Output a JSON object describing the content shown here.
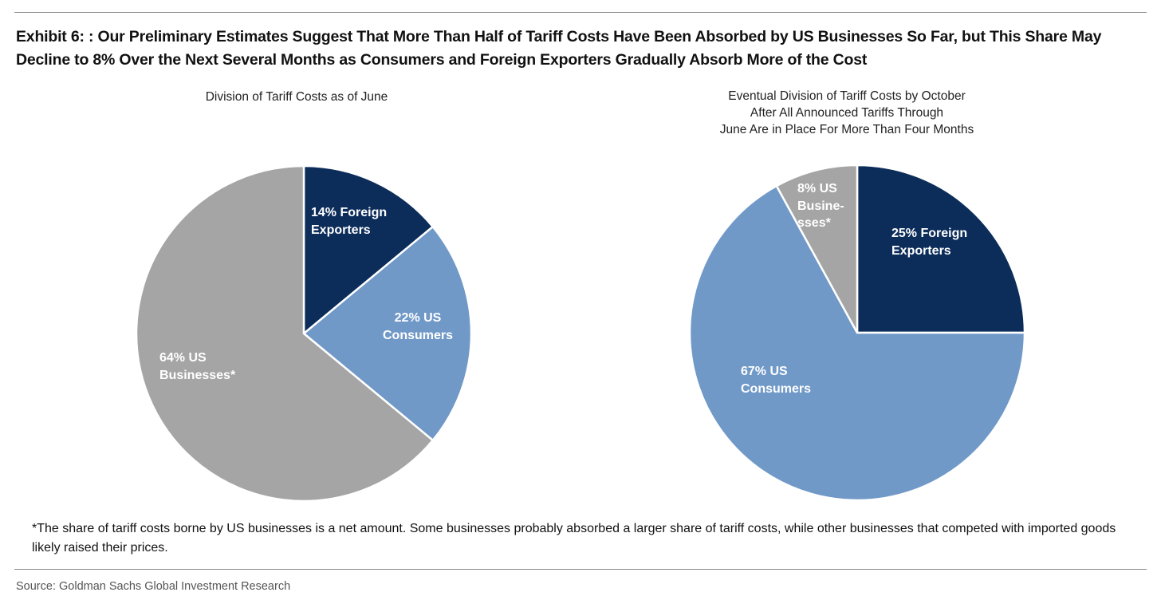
{
  "title": "Exhibit 6: : Our Preliminary Estimates Suggest That More Than Half of Tariff Costs Have Been Absorbed by US Businesses So Far, but This Share May Decline to 8% Over the Next Several Months as Consumers and Foreign Exporters Gradually Absorb More of the Cost",
  "colors": {
    "foreign": "#0c2d5a",
    "consumers": "#7099c8",
    "businesses": "#a5a5a5"
  },
  "chart_data": [
    {
      "type": "pie",
      "title": "Division of Tariff Costs as of June",
      "start": "top",
      "direction": "clockwise",
      "slices": [
        {
          "name": "Foreign Exporters",
          "value": 14,
          "label": [
            "14% Foreign",
            "Exporters"
          ],
          "color": "#0c2d5a"
        },
        {
          "name": "US Consumers",
          "value": 22,
          "label": [
            "22% US",
            "Consumers"
          ],
          "color": "#7099c8"
        },
        {
          "name": "US Businesses",
          "value": 64,
          "label": [
            "64% US",
            "Businesses*"
          ],
          "color": "#a5a5a5"
        }
      ]
    },
    {
      "type": "pie",
      "title": [
        "Eventual Division of Tariff Costs by October",
        "After All Announced Tariffs Through",
        "June Are in Place For More Than Four Months"
      ],
      "start": "top",
      "direction": "clockwise",
      "slices": [
        {
          "name": "Foreign Exporters",
          "value": 25,
          "label": [
            "25% Foreign",
            "Exporters"
          ],
          "color": "#0c2d5a"
        },
        {
          "name": "US Consumers",
          "value": 67,
          "label": [
            "67% US",
            "Consumers"
          ],
          "color": "#7099c8"
        },
        {
          "name": "US Businesses",
          "value": 8,
          "label": [
            "8% US",
            "Busine-",
            "sses*"
          ],
          "color": "#a5a5a5"
        }
      ]
    }
  ],
  "footnote": "*The share of tariff costs borne by US businesses is a net amount. Some businesses probably absorbed a larger share of tariff costs, while other businesses that competed with imported goods likely raised their prices.",
  "source": "Source: Goldman Sachs Global Investment Research"
}
